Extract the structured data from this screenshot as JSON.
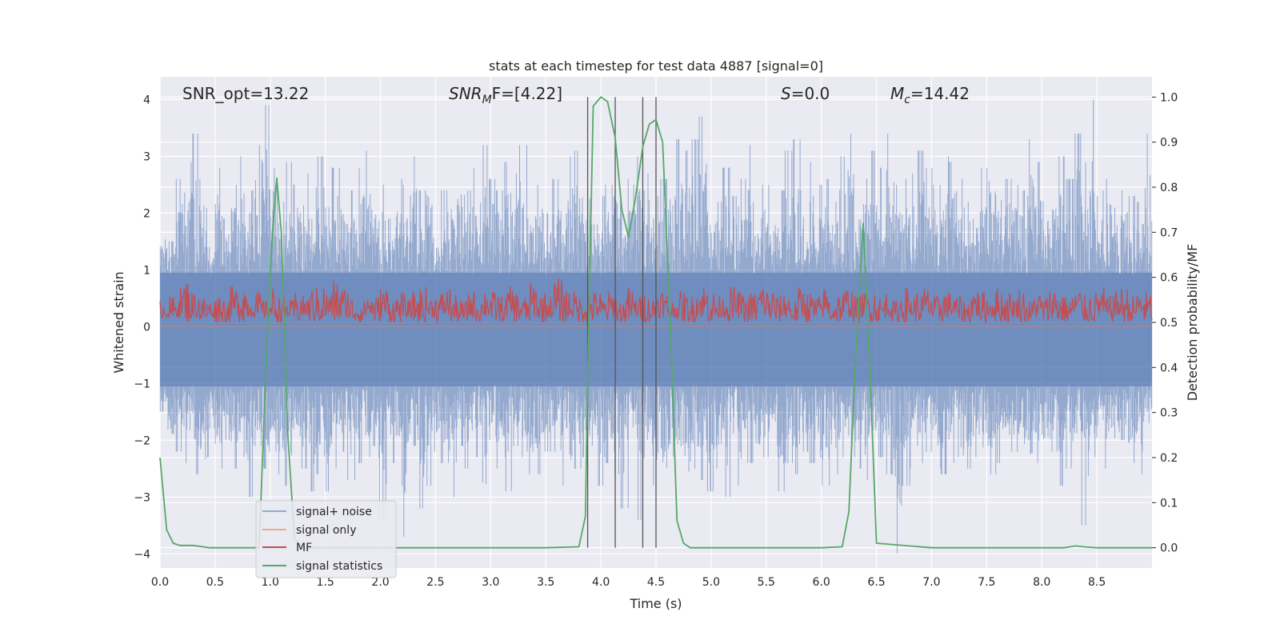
{
  "chart_data": {
    "type": "line",
    "title": "stats at each timestep for test data 4887 [signal=0]",
    "xlabel": "Time (s)",
    "ylabel_left": "Whitened strain",
    "ylabel_right": "Detection probability/MF",
    "xlim": [
      0.0,
      9.0
    ],
    "ylim_left": [
      -4.25,
      4.4
    ],
    "ylim_right": [
      -0.045,
      1.045
    ],
    "x_ticks": [
      "0.0",
      "0.5",
      "1.0",
      "1.5",
      "2.0",
      "2.5",
      "3.0",
      "3.5",
      "4.0",
      "4.5",
      "5.0",
      "5.5",
      "6.0",
      "6.5",
      "7.0",
      "7.5",
      "8.0",
      "8.5"
    ],
    "y_ticks_left": [
      "4",
      "3",
      "2",
      "1",
      "0",
      "−1",
      "−2",
      "−3",
      "−4"
    ],
    "y_ticks_right": [
      "1.0",
      "0.9",
      "0.8",
      "0.7",
      "0.6",
      "0.5",
      "0.4",
      "0.3",
      "0.2",
      "0.1",
      "0.0"
    ],
    "grid": true,
    "legend_position": "lower-left",
    "annotations": {
      "snr_opt": "SNR_opt=13.22",
      "snr_mf_main": "SNR",
      "snr_mf_sub": "M",
      "snr_mf_tail": "F=[4.22]",
      "s_main": "S",
      "s_tail": "=0.0",
      "mc_main": "M",
      "mc_sub": "c",
      "mc_tail": "=14.42"
    },
    "vertical_markers": [
      3.88,
      4.13,
      4.38,
      4.5
    ],
    "series": [
      {
        "name": "signal+ noise",
        "axis": "left",
        "color": "#4c72b0",
        "style": "noise band",
        "envelope_top": [
          1.8,
          1.5,
          2.6,
          2.9,
          3.4,
          2.6,
          1.4,
          2.8,
          1.9,
          2.5,
          3.0,
          2.4,
          3.2,
          3.9,
          3.6,
          2.2,
          2.9,
          2.5,
          2.7,
          1.9,
          3.0,
          2.1,
          2.8,
          2.6,
          2.4,
          2.8,
          3.1,
          2.5,
          2.5,
          1.9,
          2.6,
          2.5,
          3.0,
          2.4,
          2.8,
          1.9,
          2.4,
          2.7,
          2.9,
          2.4,
          2.8,
          3.2,
          2.6,
          2.4,
          2.9,
          2.7,
          3.2,
          2.3,
          2.5,
          2.0,
          2.6,
          2.6,
          3.0,
          3.1,
          2.8,
          1.8,
          2.3,
          2.5,
          2.9,
          2.6,
          2.5,
          3.0,
          2.7,
          2.3,
          2.6,
          2.9,
          3.3,
          3.1,
          3.3,
          3.7,
          2.4,
          2.2,
          2.8,
          2.3,
          2.6,
          3.2,
          1.9,
          2.5,
          2.1,
          2.4,
          3.1,
          3.3,
          2.4,
          2.9,
          2.5,
          2.6,
          2.2,
          3.0,
          3.4,
          2.4,
          2.6,
          3.1,
          2.8,
          3.4,
          2.5,
          2.6,
          2.7,
          3.1,
          2.8,
          2.5,
          3.0,
          2.9,
          2.6,
          2.2,
          2.5,
          2.8,
          3.2,
          2.8,
          2.6,
          2.5,
          2.4,
          3.3,
          2.9,
          2.2,
          2.6,
          3.0,
          2.6,
          3.4,
          2.9,
          4.0,
          2.4,
          2.6,
          2.1,
          2.4,
          2.3,
          2.2,
          3.4
        ],
        "envelope_bottom": [
          -1.5,
          -2.3,
          -2.2,
          -2.4,
          -2.6,
          -2.9,
          -2.3,
          -2.5,
          -2.0,
          -2.5,
          -2.3,
          -3.0,
          -2.1,
          -2.5,
          -2.2,
          -2.6,
          -2.8,
          -2.3,
          -2.5,
          -2.9,
          -2.6,
          -2.9,
          -2.5,
          -2.2,
          -2.7,
          -2.4,
          -2.3,
          -2.1,
          -3.4,
          -2.4,
          -2.3,
          -3.7,
          -2.1,
          -3.2,
          -2.8,
          -2.2,
          -2.4,
          -3.0,
          -2.1,
          -2.5,
          -2.3,
          -3.6,
          -2.0,
          -2.5,
          -2.9,
          -2.1,
          -2.3,
          -2.6,
          -2.6,
          -2.2,
          -2.2,
          -2.8,
          -2.9,
          -2.5,
          -2.3,
          -2.1,
          -2.8,
          -2.4,
          -2.6,
          -3.2,
          -2.1,
          -3.4,
          -2.4,
          -2.8,
          -3.0,
          -3.1,
          -2.6,
          -3.3,
          -2.5,
          -2.7,
          -2.9,
          -2.5,
          -3.0,
          -2.2,
          -2.8,
          -2.4,
          -2.5,
          -2.3,
          -2.1,
          -2.9,
          -2.4,
          -2.6,
          -2.2,
          -2.4,
          -2.8,
          -2.8,
          -2.6,
          -2.3,
          -2.3,
          -2.5,
          -2.7,
          -2.2,
          -2.3,
          -2.6,
          -4.0,
          -2.8,
          -2.5,
          -2.4,
          -2.2,
          -2.5,
          -2.6,
          -2.4,
          -2.8,
          -2.5,
          -2.3,
          -2.5,
          -2.6,
          -2.4,
          -2.3,
          -2.2,
          -2.5,
          -2.7,
          -2.4,
          -2.6,
          -2.2,
          -2.8,
          -2.5,
          -2.2,
          -3.5,
          -2.3,
          -2.1,
          -2.5,
          -2.3,
          -2.0,
          -2.4,
          -2.6,
          -1.7
        ]
      },
      {
        "name": "signal only",
        "axis": "left",
        "color": "#dd8452",
        "style": "flat",
        "value": 0.0
      },
      {
        "name": "MF",
        "axis": "right",
        "color": "#c44e52",
        "style": "noise band",
        "envelope_top": [
          0.55,
          0.56,
          0.58,
          0.6,
          0.57,
          0.56,
          0.55,
          0.57,
          0.56,
          0.58,
          0.6,
          0.56,
          0.57,
          0.55,
          0.58,
          0.56,
          0.55,
          0.57,
          0.56,
          0.58,
          0.59,
          0.57,
          0.6,
          0.58,
          0.56,
          0.55,
          0.57,
          0.56,
          0.58,
          0.56,
          0.57,
          0.55,
          0.57,
          0.58,
          0.56,
          0.57,
          0.58,
          0.56,
          0.55,
          0.57,
          0.56,
          0.58,
          0.57,
          0.56,
          0.58,
          0.57,
          0.56,
          0.59,
          0.57,
          0.56,
          0.6,
          0.58,
          0.57,
          0.56,
          0.58,
          0.57,
          0.56,
          0.57,
          0.55,
          0.58,
          0.56,
          0.57,
          0.56,
          0.58,
          0.57,
          0.55,
          0.57,
          0.56,
          0.58,
          0.59,
          0.57,
          0.56,
          0.58,
          0.57,
          0.56,
          0.57,
          0.59,
          0.58,
          0.56,
          0.57,
          0.55,
          0.58,
          0.57,
          0.56,
          0.58,
          0.56,
          0.57,
          0.58,
          0.56,
          0.57,
          0.58,
          0.56,
          0.57,
          0.55,
          0.58,
          0.56,
          0.57,
          0.58,
          0.56,
          0.58,
          0.57,
          0.56,
          0.55,
          0.58,
          0.57,
          0.56,
          0.58,
          0.57,
          0.56,
          0.58,
          0.55,
          0.57,
          0.56,
          0.58,
          0.57,
          0.56,
          0.58,
          0.56,
          0.57,
          0.58,
          0.56,
          0.57,
          0.58,
          0.56,
          0.57,
          0.57
        ],
        "envelope_bottom": [
          0.51,
          0.5,
          0.51,
          0.5,
          0.51,
          0.5,
          0.51,
          0.5,
          0.5,
          0.51,
          0.5,
          0.51,
          0.5,
          0.51,
          0.5,
          0.5,
          0.51,
          0.5,
          0.51,
          0.5,
          0.5,
          0.51,
          0.5,
          0.51,
          0.5,
          0.5,
          0.51,
          0.5,
          0.51,
          0.5,
          0.5,
          0.51,
          0.5,
          0.5,
          0.51,
          0.5,
          0.51,
          0.5,
          0.5,
          0.51,
          0.5,
          0.51,
          0.5,
          0.5,
          0.51,
          0.5,
          0.5,
          0.51,
          0.5,
          0.51,
          0.5,
          0.5,
          0.51,
          0.5,
          0.5,
          0.51,
          0.5,
          0.51,
          0.5,
          0.5,
          0.51,
          0.5,
          0.5,
          0.51,
          0.5,
          0.51,
          0.5,
          0.5,
          0.51,
          0.5,
          0.5,
          0.51,
          0.5,
          0.51,
          0.5,
          0.5,
          0.51,
          0.5,
          0.5,
          0.51,
          0.5,
          0.51,
          0.5,
          0.5,
          0.51,
          0.5,
          0.5,
          0.51,
          0.5,
          0.51,
          0.5,
          0.5,
          0.51,
          0.5,
          0.5,
          0.51,
          0.5,
          0.51,
          0.5,
          0.5,
          0.51,
          0.5,
          0.5,
          0.51,
          0.5,
          0.51,
          0.5,
          0.5,
          0.51,
          0.5,
          0.5,
          0.51,
          0.5,
          0.51,
          0.5,
          0.5,
          0.51,
          0.5,
          0.5,
          0.51,
          0.5,
          0.51,
          0.5,
          0.5,
          0.51,
          0.5
        ]
      },
      {
        "name": "signal statistics",
        "axis": "right",
        "color": "#55a868",
        "style": "line",
        "x": [
          0.0,
          0.06,
          0.12,
          0.18,
          0.3,
          0.45,
          0.6,
          0.75,
          0.9,
          0.96,
          1.02,
          1.06,
          1.1,
          1.16,
          1.22,
          1.3,
          1.5,
          2.0,
          2.5,
          3.0,
          3.5,
          3.8,
          3.86,
          3.88,
          3.93,
          4.0,
          4.06,
          4.13,
          4.19,
          4.25,
          4.31,
          4.38,
          4.44,
          4.5,
          4.56,
          4.63,
          4.69,
          4.75,
          4.81,
          4.9,
          5.5,
          6.0,
          6.19,
          6.25,
          6.31,
          6.38,
          6.44,
          6.5,
          7.0,
          7.5,
          8.0,
          8.2,
          8.31,
          8.38,
          8.5,
          9.0
        ],
        "y": [
          0.2,
          0.04,
          0.01,
          0.005,
          0.005,
          0.0,
          0.0,
          0.0,
          0.0,
          0.4,
          0.7,
          0.82,
          0.7,
          0.25,
          0.02,
          0.0,
          0.0,
          0.0,
          0.0,
          0.0,
          0.0,
          0.002,
          0.07,
          0.38,
          0.98,
          1.0,
          0.99,
          0.91,
          0.75,
          0.69,
          0.77,
          0.89,
          0.94,
          0.95,
          0.9,
          0.5,
          0.06,
          0.01,
          0.0,
          0.0,
          0.0,
          0.0,
          0.002,
          0.08,
          0.42,
          0.72,
          0.4,
          0.01,
          0.0,
          0.0,
          0.0,
          0.0,
          0.004,
          0.002,
          0.0,
          0.0
        ]
      }
    ]
  }
}
